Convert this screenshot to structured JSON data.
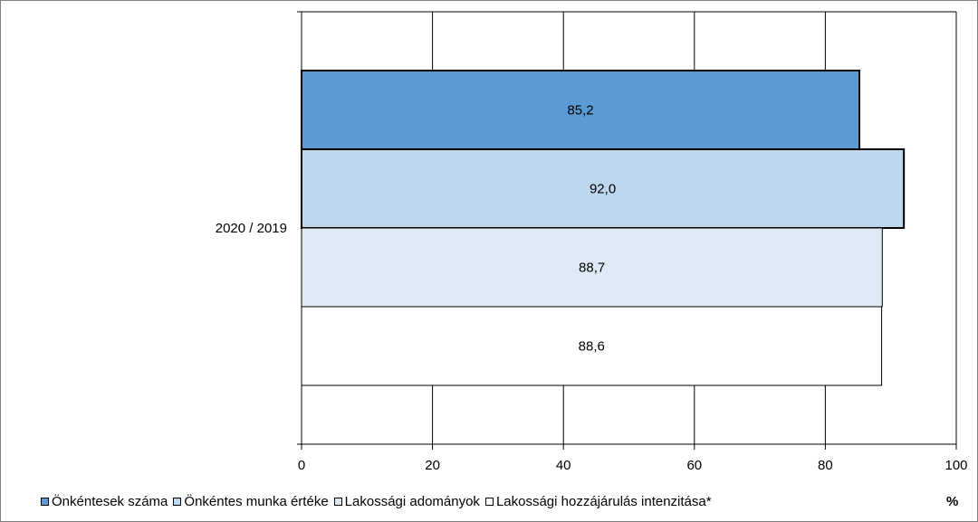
{
  "chart_data": {
    "type": "bar",
    "orientation": "horizontal",
    "categories": [
      "2020 / 2019"
    ],
    "series": [
      {
        "name": "Önkéntesek száma",
        "values": [
          85.2
        ],
        "labels": [
          "85,2"
        ],
        "color": "#5b9bd5"
      },
      {
        "name": "Önkéntes munka értéke",
        "values": [
          92.0
        ],
        "labels": [
          "92,0"
        ],
        "color": "#bdd7ee"
      },
      {
        "name": "Lakossági adományok",
        "values": [
          88.7
        ],
        "labels": [
          "88,7"
        ],
        "color": "#deebf7"
      },
      {
        "name": "Lakossági hozzájárulás intenzitása*",
        "values": [
          88.6
        ],
        "labels": [
          "88,6"
        ],
        "color": "#ffffff"
      }
    ],
    "xlim": [
      0,
      100
    ],
    "xticks": [
      0,
      20,
      40,
      60,
      80,
      100
    ],
    "xtick_labels": [
      "0",
      "20",
      "40",
      "60",
      "80",
      "100"
    ],
    "unit_label": "%",
    "grid": "vertical",
    "legend_position": "bottom"
  }
}
